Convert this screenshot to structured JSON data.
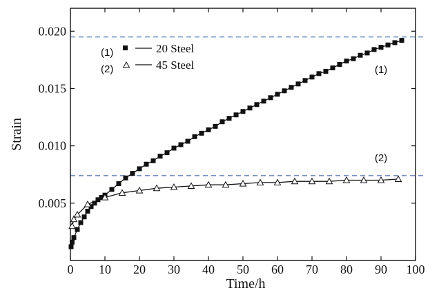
{
  "chart_data": {
    "type": "line",
    "xlabel": "Time/h",
    "ylabel": "Strain",
    "xlim": [
      0,
      100
    ],
    "ylim": [
      0,
      0.022
    ],
    "x_ticks": [
      0,
      10,
      20,
      30,
      40,
      50,
      60,
      70,
      80,
      90,
      100
    ],
    "x_tick_labels": [
      "0",
      "10",
      "20",
      "30",
      "40",
      "50",
      "60",
      "70",
      "80",
      "90",
      "100"
    ],
    "y_ticks": [
      0.005,
      0.01,
      0.015,
      0.02
    ],
    "y_tick_labels": [
      "0.005",
      "0.010",
      "0.015",
      "0.020"
    ],
    "grid": false,
    "legend_position": "top-left",
    "legend": [
      {
        "prefix": "(1)",
        "marker": "square-filled",
        "name": "20 Steel"
      },
      {
        "prefix": "(2)",
        "marker": "triangle-open",
        "name": "45 Steel"
      }
    ],
    "series": [
      {
        "name": "20 Steel",
        "marker": "square-filled",
        "color": "#111111",
        "x": [
          0.2,
          0.5,
          1,
          2,
          3,
          4,
          5,
          6,
          7,
          8,
          9,
          10,
          12,
          14,
          16,
          18,
          20,
          22,
          24,
          26,
          28,
          30,
          32,
          34,
          36,
          38,
          40,
          42,
          44,
          46,
          48,
          50,
          52,
          54,
          56,
          58,
          60,
          62,
          64,
          66,
          68,
          70,
          72,
          74,
          76,
          78,
          80,
          82,
          84,
          86,
          88,
          90,
          92,
          94,
          96
        ],
        "y": [
          0.0012,
          0.0016,
          0.002,
          0.0027,
          0.0033,
          0.0038,
          0.0043,
          0.0047,
          0.005,
          0.0053,
          0.0055,
          0.0057,
          0.0062,
          0.0067,
          0.0072,
          0.0076,
          0.008,
          0.0084,
          0.0087,
          0.0091,
          0.0094,
          0.0098,
          0.0101,
          0.0104,
          0.0108,
          0.0111,
          0.0114,
          0.0117,
          0.0121,
          0.0124,
          0.0127,
          0.013,
          0.0133,
          0.0136,
          0.0139,
          0.0142,
          0.0145,
          0.0148,
          0.0151,
          0.0154,
          0.0157,
          0.016,
          0.0163,
          0.0165,
          0.0168,
          0.0171,
          0.0174,
          0.0176,
          0.0179,
          0.0181,
          0.0184,
          0.0186,
          0.0188,
          0.019,
          0.0192
        ]
      },
      {
        "name": "45 Steel",
        "marker": "triangle-open",
        "color": "#111111",
        "x": [
          0.5,
          1,
          2,
          5,
          10,
          15,
          20,
          25,
          30,
          35,
          40,
          45,
          50,
          55,
          60,
          65,
          70,
          75,
          80,
          85,
          90,
          95
        ],
        "y": [
          0.003,
          0.0036,
          0.004,
          0.0049,
          0.0055,
          0.0059,
          0.0061,
          0.0063,
          0.0064,
          0.0065,
          0.0066,
          0.0066,
          0.0067,
          0.0068,
          0.0068,
          0.0069,
          0.0069,
          0.0069,
          0.007,
          0.007,
          0.007,
          0.0071
        ]
      }
    ],
    "reference_lines": [
      {
        "label": "(1)",
        "y": 0.0195,
        "style": "dashed",
        "color": "#4a6fb5"
      },
      {
        "label": "(2)",
        "y": 0.0074,
        "style": "dashed",
        "color": "#4a6fb5"
      }
    ]
  }
}
